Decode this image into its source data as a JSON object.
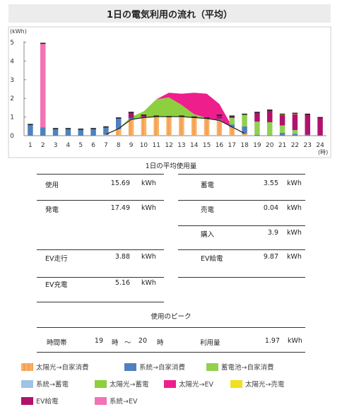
{
  "title": "1日の電気利用の流れ（平均）",
  "chart_data": {
    "type": "bar",
    "ylabel": "(kWh)",
    "xlabel": "(時)",
    "ylim": [
      0,
      5
    ],
    "yticks": [
      "0",
      "1",
      "2",
      "3",
      "4",
      "5"
    ],
    "categories": [
      "1",
      "2",
      "3",
      "4",
      "5",
      "6",
      "7",
      "8",
      "9",
      "10",
      "11",
      "12",
      "13",
      "14",
      "15",
      "16",
      "17",
      "18",
      "19",
      "20",
      "21",
      "22",
      "23",
      "24"
    ],
    "series": [
      {
        "name": "太陽光→自家消費",
        "color": "#f9b264",
        "values": [
          0,
          0,
          0,
          0,
          0,
          0,
          0.05,
          0.35,
          0.85,
          0.95,
          1.0,
          1.0,
          1.0,
          0.95,
          0.9,
          0.8,
          0.45,
          0.1,
          0,
          0,
          0,
          0,
          0,
          0
        ]
      },
      {
        "name": "系統→自家消費",
        "color": "#4f81bd",
        "values": [
          0.6,
          0.45,
          0.38,
          0.38,
          0.35,
          0.38,
          0.42,
          0.6,
          0.1,
          0.05,
          0.05,
          0.02,
          0.05,
          0.05,
          0.05,
          0.1,
          0.15,
          0.4,
          0.05,
          0.02,
          0.15,
          0.1,
          0.05,
          0.02
        ]
      },
      {
        "name": "蓄電池→自家消費",
        "color": "#92d050",
        "values": [
          0,
          0,
          0,
          0,
          0,
          0,
          0,
          0,
          0,
          0,
          0,
          0,
          0,
          0,
          0,
          0,
          0.35,
          0.65,
          0.7,
          0.7,
          0.4,
          0.2,
          0,
          0
        ]
      },
      {
        "name": "系統→蓄電",
        "color": "#9dc3e6",
        "values": [
          0,
          0,
          0,
          0,
          0,
          0,
          0,
          0,
          0,
          0,
          0,
          0,
          0,
          0,
          0,
          0,
          0,
          0,
          0,
          0,
          0,
          0,
          0,
          0
        ]
      },
      {
        "name": "EV給電",
        "color": "#b0126e",
        "values": [
          0,
          0,
          0,
          0,
          0,
          0,
          0,
          0,
          0.3,
          0.1,
          0,
          0,
          0,
          0,
          0,
          0.2,
          0.1,
          0,
          0.5,
          0.65,
          0.55,
          0.85,
          1.1,
          0.95
        ]
      },
      {
        "name": "系統→EV",
        "color": "#f472b6",
        "values": [
          0,
          4.5,
          0,
          0,
          0,
          0,
          0,
          0,
          0,
          0,
          0,
          0,
          0,
          0,
          0,
          0,
          0,
          0,
          0,
          0,
          0,
          0,
          0,
          0
        ]
      },
      {
        "name": "太陽光→売電",
        "color": "#f0e020",
        "values": [
          0,
          0,
          0,
          0,
          0,
          0,
          0,
          0,
          0,
          0,
          0,
          0,
          0,
          0,
          0,
          0,
          0,
          0,
          0,
          0,
          0.05,
          0.05,
          0,
          0
        ]
      }
    ],
    "areas": [
      {
        "name": "太陽光→蓄電",
        "color": "#8dcf3e",
        "x": [
          8,
          9,
          10,
          11,
          12,
          13,
          14,
          15,
          16,
          17
        ],
        "values": [
          0.05,
          0.15,
          0.35,
          0.95,
          1.05,
          0.65,
          0.2,
          0.05,
          0,
          0
        ]
      },
      {
        "name": "太陽光→EV",
        "color": "#ee1e8c",
        "x": [
          11,
          12,
          13,
          14,
          15,
          16,
          17
        ],
        "values": [
          0,
          0.25,
          0.6,
          1.15,
          1.3,
          0.9,
          0.05
        ]
      }
    ]
  },
  "usage": {
    "heading": "1日の平均使用量",
    "rows": [
      {
        "l_label": "使用",
        "l_value": "15.69",
        "l_unit": "kWh",
        "r_label": "蓄電",
        "r_value": "3.55",
        "r_unit": "kWh"
      },
      {
        "l_label": "発電",
        "l_value": "17.49",
        "l_unit": "kWh",
        "r_label": "売電",
        "r_value": "0.04",
        "r_unit": "kWh"
      },
      {
        "l_label": "",
        "l_value": "",
        "l_unit": "",
        "r_label": "購入",
        "r_value": "3.9",
        "r_unit": "kWh"
      },
      {
        "l_label": "EV走行",
        "l_value": "3.88",
        "l_unit": "kWh",
        "r_label": "EV給電",
        "r_value": "9.87",
        "r_unit": "kWh"
      },
      {
        "l_label": "EV充電",
        "l_value": "5.16",
        "l_unit": "kWh",
        "r_label": "",
        "r_value": "",
        "r_unit": ""
      }
    ]
  },
  "peak": {
    "heading": "使用のピーク",
    "time_label": "時間帯",
    "start": "19",
    "start_unit": "時",
    "tilde": "～",
    "end": "20",
    "end_unit": "時",
    "amount_label": "利用量",
    "amount": "1.97",
    "amount_unit": "kWh"
  },
  "legend": [
    {
      "label": "太陽光→自家消費",
      "color": "#f9b264",
      "pattern": "stripe"
    },
    {
      "label": "系統→自家消費",
      "color": "#4f81bd"
    },
    {
      "label": "蓄電池→自家消費",
      "color": "#92d050"
    },
    {
      "label": "系統→蓄電",
      "color": "#9dc3e6"
    },
    {
      "label": "太陽光→蓄電",
      "color": "#8dcf3e"
    },
    {
      "label": "太陽光→EV",
      "color": "#ee1e8c"
    },
    {
      "label": "太陽光→売電",
      "color": "#f0e020"
    },
    {
      "label": "EV給電",
      "color": "#b0126e"
    },
    {
      "label": "系統→EV",
      "color": "#f472b6"
    }
  ]
}
